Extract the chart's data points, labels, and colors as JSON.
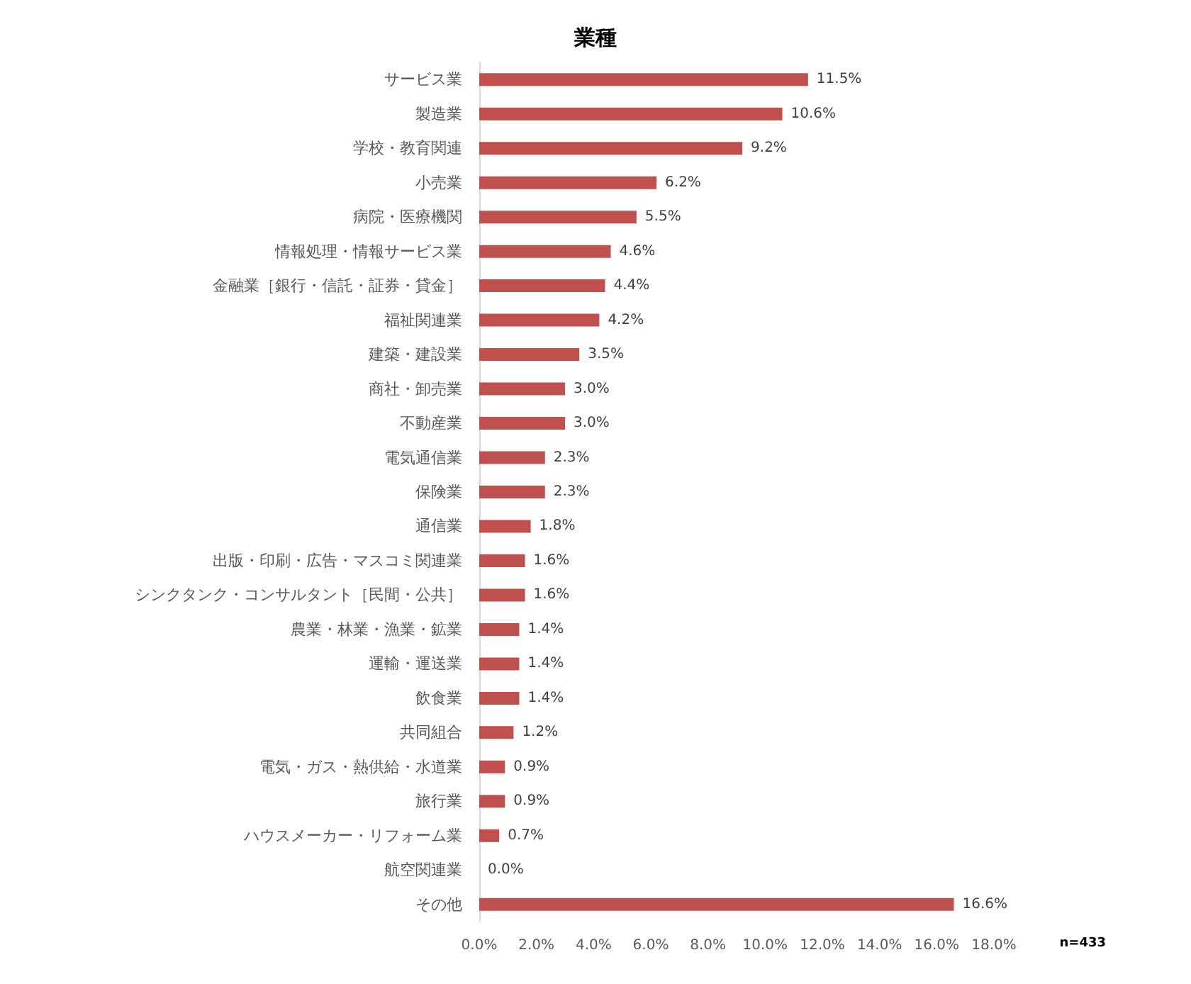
{
  "chart_data": {
    "type": "bar",
    "orientation": "horizontal",
    "title": "業種",
    "categories": [
      "サービス業",
      "製造業",
      "学校・教育関連",
      "小売業",
      "病院・医療機関",
      "情報処理・情報サービス業",
      "金融業［銀行・信託・証券・貸金］",
      "福祉関連業",
      "建築・建設業",
      "商社・卸売業",
      "不動産業",
      "電気通信業",
      "保険業",
      "通信業",
      "出版・印刷・広告・マスコミ関連業",
      "シンクタンク・コンサルタント［民間・公共］",
      "農業・林業・漁業・鉱業",
      "運輸・運送業",
      "飲食業",
      "共同組合",
      "電気・ガス・熱供給・水道業",
      "旅行業",
      "ハウスメーカー・リフォーム業",
      "航空関連業",
      "その他"
    ],
    "values": [
      11.5,
      10.6,
      9.2,
      6.2,
      5.5,
      4.6,
      4.4,
      4.2,
      3.5,
      3.0,
      3.0,
      2.3,
      2.3,
      1.8,
      1.6,
      1.6,
      1.4,
      1.4,
      1.4,
      1.2,
      0.9,
      0.9,
      0.7,
      0.0,
      16.6
    ],
    "value_labels": [
      "11.5%",
      "10.6%",
      "9.2%",
      "6.2%",
      "5.5%",
      "4.6%",
      "4.4%",
      "4.2%",
      "3.5%",
      "3.0%",
      "3.0%",
      "2.3%",
      "2.3%",
      "1.8%",
      "1.6%",
      "1.6%",
      "1.4%",
      "1.4%",
      "1.4%",
      "1.2%",
      "0.9%",
      "0.9%",
      "0.7%",
      "0.0%",
      "16.6%"
    ],
    "color": "#c0504d",
    "xlim": [
      0,
      18
    ],
    "xticks": [
      {
        "value": 0,
        "label": "0.0%"
      },
      {
        "value": 2,
        "label": "2.0%"
      },
      {
        "value": 4,
        "label": "4.0%"
      },
      {
        "value": 6,
        "label": "6.0%"
      },
      {
        "value": 8,
        "label": "8.0%"
      },
      {
        "value": 10,
        "label": "10.0%"
      },
      {
        "value": 12,
        "label": "12.0%"
      },
      {
        "value": 14,
        "label": "14.0%"
      },
      {
        "value": 16,
        "label": "16.0%"
      },
      {
        "value": 18,
        "label": "18.0%"
      }
    ],
    "grid": false,
    "annotations": [
      "n=433"
    ]
  }
}
